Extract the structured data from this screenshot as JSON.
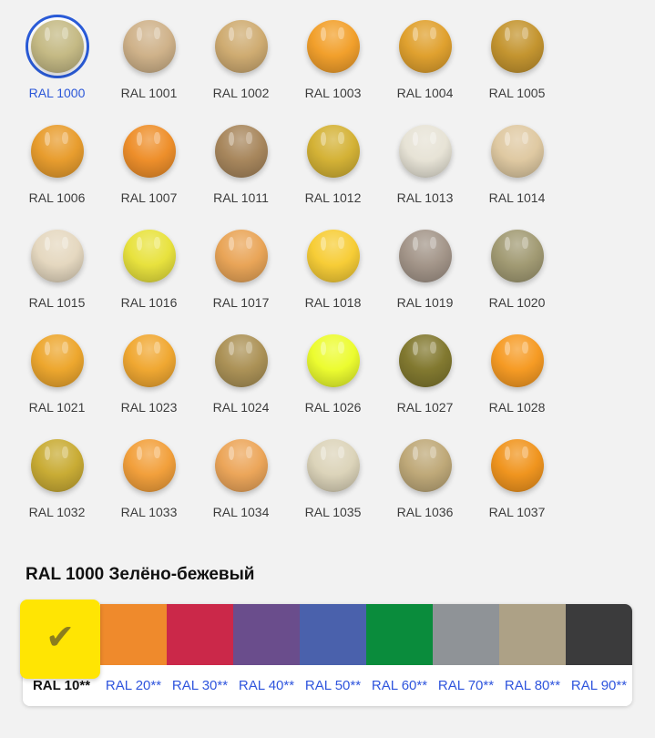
{
  "page": {
    "background": "#f2f2f2",
    "accent": {
      "selection_ring_blue": "#2a5bd7",
      "link_blue": "#2f55dd",
      "check_color": "#8b7d1e"
    }
  },
  "palette_grid": {
    "selected_code": "RAL 1000",
    "items": [
      {
        "code": "RAL 1000",
        "color": "#C5BA85",
        "selected": true
      },
      {
        "code": "RAL 1001",
        "color": "#CFB28A",
        "selected": false
      },
      {
        "code": "RAL 1002",
        "color": "#CFAC72",
        "selected": false
      },
      {
        "code": "RAL 1003",
        "color": "#F2A02C",
        "selected": false
      },
      {
        "code": "RAL 1004",
        "color": "#E0A12F",
        "selected": false
      },
      {
        "code": "RAL 1005",
        "color": "#C49530",
        "selected": false
      },
      {
        "code": "RAL 1006",
        "color": "#E89D2E",
        "selected": false
      },
      {
        "code": "RAL 1007",
        "color": "#EE8F2B",
        "selected": false
      },
      {
        "code": "RAL 1011",
        "color": "#A8875D",
        "selected": false
      },
      {
        "code": "RAL 1012",
        "color": "#D4B236",
        "selected": false
      },
      {
        "code": "RAL 1013",
        "color": "#E7E3D6",
        "selected": false
      },
      {
        "code": "RAL 1014",
        "color": "#DFC9A2",
        "selected": false
      },
      {
        "code": "RAL 1015",
        "color": "#E5D8C0",
        "selected": false
      },
      {
        "code": "RAL 1016",
        "color": "#E8E23E",
        "selected": false
      },
      {
        "code": "RAL 1017",
        "color": "#E9A558",
        "selected": false
      },
      {
        "code": "RAL 1018",
        "color": "#F7CD37",
        "selected": false
      },
      {
        "code": "RAL 1019",
        "color": "#A4968A",
        "selected": false
      },
      {
        "code": "RAL 1020",
        "color": "#A29B74",
        "selected": false
      },
      {
        "code": "RAL 1021",
        "color": "#EDA72E",
        "selected": false
      },
      {
        "code": "RAL 1023",
        "color": "#F0A832",
        "selected": false
      },
      {
        "code": "RAL 1024",
        "color": "#AC9257",
        "selected": false
      },
      {
        "code": "RAL 1026",
        "color": "#ECFC30",
        "selected": false
      },
      {
        "code": "RAL 1027",
        "color": "#827930",
        "selected": false
      },
      {
        "code": "RAL 1028",
        "color": "#F69B24",
        "selected": false
      },
      {
        "code": "RAL 1032",
        "color": "#C9AC35",
        "selected": false
      },
      {
        "code": "RAL 1033",
        "color": "#F2A03C",
        "selected": false
      },
      {
        "code": "RAL 1034",
        "color": "#ECA65A",
        "selected": false
      },
      {
        "code": "RAL 1035",
        "color": "#DCD4BA",
        "selected": false
      },
      {
        "code": "RAL 1036",
        "color": "#BFA979",
        "selected": false
      },
      {
        "code": "RAL 1037",
        "color": "#F0951F",
        "selected": false
      }
    ]
  },
  "detail": {
    "title": "RAL 1000 Зелёно-бежевый"
  },
  "category_tabs": {
    "check_icon": "✔",
    "selected_label": "RAL 10**",
    "items": [
      {
        "label": "RAL 10**",
        "color": "#FFE503",
        "selected": true
      },
      {
        "label": "RAL 20**",
        "color": "#EF8A2C",
        "selected": false
      },
      {
        "label": "RAL 30**",
        "color": "#CB2849",
        "selected": false
      },
      {
        "label": "RAL 40**",
        "color": "#6A4D8C",
        "selected": false
      },
      {
        "label": "RAL 50**",
        "color": "#4A61AC",
        "selected": false
      },
      {
        "label": "RAL 60**",
        "color": "#0A8C3C",
        "selected": false
      },
      {
        "label": "RAL 70**",
        "color": "#8F9397",
        "selected": false
      },
      {
        "label": "RAL 80**",
        "color": "#ADA186",
        "selected": false
      },
      {
        "label": "RAL 90**",
        "color": "#3B3B3C",
        "selected": false
      }
    ]
  }
}
